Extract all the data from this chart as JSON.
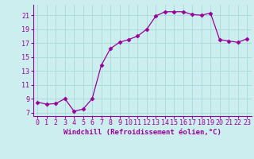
{
  "x": [
    0,
    1,
    2,
    3,
    4,
    5,
    6,
    7,
    8,
    9,
    10,
    11,
    12,
    13,
    14,
    15,
    16,
    17,
    18,
    19,
    20,
    21,
    22,
    23
  ],
  "y": [
    8.5,
    8.2,
    8.3,
    9.0,
    7.2,
    7.5,
    9.0,
    13.8,
    16.2,
    17.1,
    17.5,
    18.0,
    19.0,
    20.9,
    21.5,
    21.5,
    21.5,
    21.1,
    21.0,
    21.3,
    17.5,
    17.3,
    17.1,
    17.6
  ],
  "line_color": "#990099",
  "marker": "D",
  "marker_size": 2.5,
  "bg_color": "#cceeee",
  "grid_color": "#aadddd",
  "xlabel": "Windchill (Refroidissement éolien,°C)",
  "ylabel_ticks": [
    7,
    9,
    11,
    13,
    15,
    17,
    19,
    21
  ],
  "xlim": [
    -0.5,
    23.5
  ],
  "ylim": [
    6.5,
    22.5
  ],
  "label_fontsize": 6.5,
  "tick_fontsize": 6.0
}
